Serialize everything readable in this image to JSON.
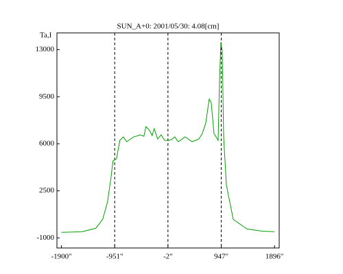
{
  "chart_data": {
    "type": "line",
    "title": "SUN_A+0: 2001/05/30: 4.08[cm]",
    "y_label": "Ta,I",
    "x": [
      -1900,
      -1533,
      -1288,
      -1165,
      -1080,
      -1018,
      -982,
      -920,
      -859,
      -798,
      -737,
      -614,
      -492,
      -431,
      -394,
      -333,
      -284,
      -247,
      -186,
      -124,
      -63,
      -2,
      59,
      120,
      182,
      304,
      427,
      549,
      610,
      671,
      733,
      769,
      818,
      892,
      916,
      941,
      965,
      990,
      1039,
      1161,
      1406,
      1651,
      1896
    ],
    "series": [
      {
        "name": "SUN_A+0",
        "color": "#00a000",
        "values": [
          -593,
          -542,
          -286,
          378,
          1656,
          3445,
          4722,
          4875,
          6255,
          6510,
          6153,
          6510,
          6664,
          6561,
          7277,
          7021,
          6612,
          7124,
          6357,
          6664,
          6255,
          6255,
          6306,
          6510,
          6153,
          6510,
          6153,
          6357,
          6766,
          7532,
          9321,
          9066,
          6766,
          6255,
          10598,
          13562,
          12898,
          6510,
          2933,
          378,
          -337,
          -490,
          -542
        ]
      }
    ],
    "xlim": [
      -1980,
      1980
    ],
    "ylim": [
      -1750,
      14250
    ],
    "xticks": [
      {
        "value": -1900,
        "label": "-1900\""
      },
      {
        "value": -951,
        "label": "-951\""
      },
      {
        "value": -2,
        "label": "-2\""
      },
      {
        "value": 947,
        "label": "947\""
      },
      {
        "value": 1896,
        "label": "1896\""
      }
    ],
    "yticks": [
      13000,
      9500,
      6000,
      2500,
      -1000
    ],
    "grid": "x"
  }
}
